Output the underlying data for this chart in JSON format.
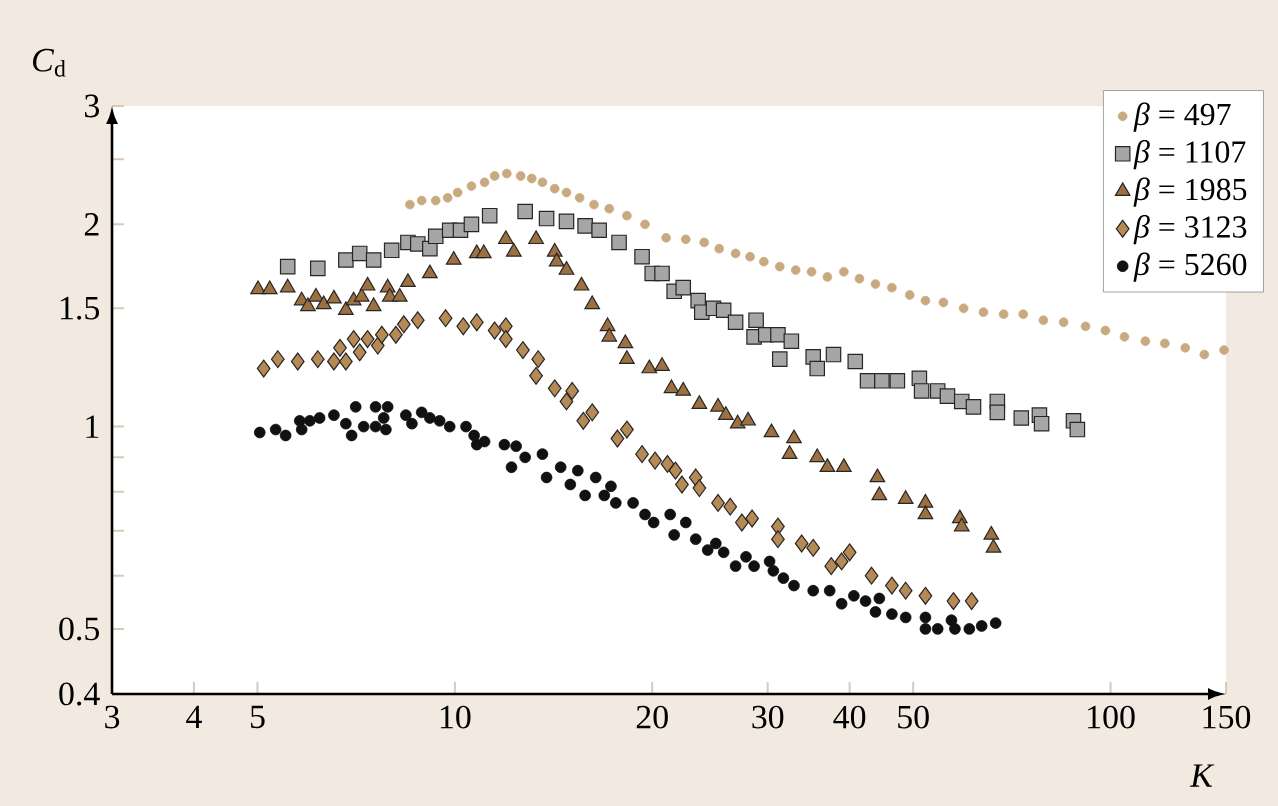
{
  "chart_data": {
    "type": "scatter",
    "xlabel": "*K*",
    "ylabel": "*C*$_{d}$",
    "log": "xy",
    "legend": "top right",
    "xlim": [
      3,
      150
    ],
    "ylim": [
      0.4,
      3
    ],
    "xticks": [
      3,
      4,
      5,
      10,
      20,
      30,
      40,
      50,
      100,
      150
    ],
    "yticks": [
      0.4,
      0.5,
      {
        "value": 0.6,
        "label": null
      },
      {
        "value": 0.7,
        "label": null
      },
      {
        "value": 0.8,
        "label": null
      },
      {
        "value": 0.9,
        "label": null
      },
      1,
      1.5,
      2,
      {
        "value": 2.5,
        "label": null
      },
      3
    ],
    "series": [
      {
        "name": "*β* = 497",
        "color": "#c9a97f",
        "marker": "circle",
        "x": [
          8.54,
          8.9,
          9.35,
          9.75,
          10.1,
          10.6,
          11.1,
          11.5,
          12.0,
          12.6,
          13.1,
          13.6,
          14.2,
          14.8,
          15.5,
          16.3,
          17.2,
          18.3,
          19.5,
          21.0,
          22.5,
          24.0,
          25.3,
          26.8,
          28.2,
          29.6,
          31.3,
          33.1,
          35.0,
          37.0,
          39.2,
          41.4,
          43.8,
          46.4,
          49.4,
          52.2,
          55.6,
          59.7,
          64.0,
          68.7,
          73.6,
          79.0,
          84.8,
          91.6,
          98.2,
          105,
          113,
          121,
          130,
          139,
          149
        ],
        "values": [
          2.14,
          2.17,
          2.17,
          2.19,
          2.23,
          2.28,
          2.31,
          2.36,
          2.38,
          2.36,
          2.34,
          2.31,
          2.26,
          2.23,
          2.19,
          2.14,
          2.11,
          2.06,
          2.0,
          1.91,
          1.9,
          1.88,
          1.84,
          1.81,
          1.79,
          1.76,
          1.73,
          1.71,
          1.7,
          1.67,
          1.7,
          1.66,
          1.63,
          1.61,
          1.57,
          1.54,
          1.53,
          1.5,
          1.48,
          1.47,
          1.47,
          1.44,
          1.43,
          1.41,
          1.39,
          1.36,
          1.34,
          1.33,
          1.31,
          1.28,
          1.3
        ]
      },
      {
        "name": "*β* = 1107",
        "color": "#a6a6a6",
        "marker": "square",
        "x": [
          5.56,
          6.18,
          6.82,
          7.16,
          7.52,
          8.01,
          8.48,
          8.78,
          9.16,
          9.35,
          9.82,
          10.2,
          10.6,
          11.3,
          12.8,
          13.8,
          14.8,
          15.8,
          16.6,
          17.8,
          19.3,
          20.0,
          20.7,
          21.6,
          22.3,
          23.5,
          23.8,
          24.8,
          25.7,
          26.8,
          28.6,
          28.8,
          29.8,
          31.1,
          31.3,
          32.6,
          35.2,
          35.7,
          37.8,
          40.8,
          42.6,
          44.8,
          47.3,
          51.1,
          51.5,
          54.5,
          56.4,
          59.3,
          61.8,
          67.2,
          67.2,
          73.1,
          77.9,
          78.5,
          87.8,
          89.0
        ],
        "values": [
          1.73,
          1.72,
          1.77,
          1.81,
          1.77,
          1.83,
          1.88,
          1.87,
          1.84,
          1.92,
          1.96,
          1.96,
          2.0,
          2.06,
          2.09,
          2.04,
          2.02,
          1.99,
          1.96,
          1.88,
          1.79,
          1.69,
          1.69,
          1.59,
          1.61,
          1.54,
          1.48,
          1.5,
          1.49,
          1.43,
          1.36,
          1.44,
          1.37,
          1.37,
          1.26,
          1.34,
          1.27,
          1.22,
          1.28,
          1.25,
          1.17,
          1.17,
          1.17,
          1.18,
          1.13,
          1.13,
          1.11,
          1.09,
          1.07,
          1.09,
          1.05,
          1.03,
          1.04,
          1.01,
          1.02,
          0.99
        ]
      },
      {
        "name": "*β* = 1985",
        "color": "#9c7040",
        "marker": "triangle",
        "x": [
          5.01,
          5.22,
          5.56,
          5.84,
          5.97,
          6.14,
          6.31,
          6.54,
          6.82,
          7.01,
          7.21,
          7.36,
          7.52,
          7.9,
          7.96,
          8.24,
          8.48,
          9.16,
          9.96,
          10.8,
          11.07,
          11.96,
          12.3,
          13.3,
          14.2,
          14.3,
          14.8,
          15.6,
          16.2,
          17.1,
          17.2,
          18.2,
          18.3,
          19.8,
          20.7,
          21.4,
          22.3,
          23.6,
          25.2,
          25.9,
          27.0,
          28.0,
          30.4,
          32.9,
          32.4,
          35.7,
          37.0,
          39.2,
          44.1,
          44.4,
          48.7,
          52.2,
          52.2,
          58.9,
          59.3,
          65.8,
          66.3
        ],
        "values": [
          1.6,
          1.6,
          1.61,
          1.54,
          1.51,
          1.56,
          1.52,
          1.55,
          1.49,
          1.54,
          1.56,
          1.62,
          1.51,
          1.61,
          1.56,
          1.56,
          1.64,
          1.69,
          1.77,
          1.81,
          1.81,
          1.9,
          1.82,
          1.9,
          1.82,
          1.76,
          1.71,
          1.62,
          1.52,
          1.41,
          1.36,
          1.33,
          1.26,
          1.22,
          1.23,
          1.14,
          1.13,
          1.08,
          1.07,
          1.04,
          1.01,
          1.02,
          0.98,
          0.96,
          0.91,
          0.9,
          0.87,
          0.87,
          0.84,
          0.79,
          0.78,
          0.77,
          0.74,
          0.73,
          0.71,
          0.69,
          0.66
        ]
      },
      {
        "name": "*β* = 3123",
        "color": "#b58a55",
        "marker": "diamond",
        "x": [
          5.11,
          5.37,
          5.76,
          6.18,
          6.54,
          6.68,
          6.82,
          7.01,
          7.16,
          7.36,
          7.63,
          7.74,
          8.13,
          8.36,
          8.78,
          9.68,
          10.3,
          10.8,
          11.5,
          11.96,
          11.96,
          12.7,
          13.4,
          13.3,
          14.2,
          15.1,
          14.8,
          16.2,
          15.7,
          17.7,
          18.3,
          19.3,
          20.2,
          21.1,
          21.7,
          22.2,
          23.3,
          23.6,
          25.2,
          26.3,
          27.4,
          28.4,
          31.1,
          31.1,
          33.8,
          35.2,
          37.5,
          38.9,
          40.0,
          43.2,
          46.4,
          48.7,
          52.2,
          57.6,
          61.4
        ],
        "values": [
          1.22,
          1.26,
          1.25,
          1.26,
          1.25,
          1.31,
          1.25,
          1.35,
          1.29,
          1.35,
          1.32,
          1.37,
          1.37,
          1.42,
          1.44,
          1.45,
          1.41,
          1.43,
          1.39,
          1.41,
          1.35,
          1.3,
          1.26,
          1.19,
          1.14,
          1.13,
          1.09,
          1.05,
          1.02,
          0.96,
          0.99,
          0.91,
          0.89,
          0.88,
          0.86,
          0.82,
          0.84,
          0.81,
          0.77,
          0.76,
          0.72,
          0.73,
          0.71,
          0.68,
          0.67,
          0.66,
          0.62,
          0.63,
          0.65,
          0.6,
          0.58,
          0.57,
          0.56,
          0.55,
          0.55
        ]
      },
      {
        "name": "*β* = 5260",
        "color": "#111111",
        "marker": "circle",
        "x": [
          5.04,
          5.33,
          5.52,
          5.8,
          5.84,
          6.01,
          6.22,
          6.54,
          6.82,
          6.96,
          7.06,
          7.26,
          7.57,
          7.57,
          7.79,
          7.9,
          7.85,
          8.42,
          8.6,
          8.9,
          9.16,
          9.48,
          9.82,
          10.4,
          10.8,
          10.7,
          11.1,
          11.9,
          12.4,
          12.2,
          12.8,
          13.6,
          13.8,
          14.5,
          15.0,
          15.4,
          15.8,
          16.4,
          16.9,
          17.3,
          17.6,
          18.7,
          19.5,
          20.1,
          21.3,
          21.6,
          22.5,
          23.3,
          24.3,
          25.0,
          25.7,
          26.8,
          27.8,
          28.6,
          30.2,
          30.6,
          31.7,
          32.9,
          35.2,
          37.3,
          38.9,
          40.6,
          42.3,
          44.4,
          43.8,
          46.4,
          48.7,
          52.2,
          52.2,
          54.5,
          57.2,
          57.9,
          60.9,
          63.6,
          66.8
        ],
        "values": [
          0.98,
          0.99,
          0.97,
          1.02,
          0.99,
          1.02,
          1.03,
          1.04,
          1.01,
          0.97,
          1.07,
          1.0,
          1.07,
          1.0,
          1.03,
          1.07,
          0.99,
          1.04,
          1.01,
          1.05,
          1.03,
          1.02,
          1.0,
          1.0,
          0.94,
          0.97,
          0.95,
          0.94,
          0.935,
          0.87,
          0.9,
          0.91,
          0.84,
          0.87,
          0.82,
          0.86,
          0.79,
          0.84,
          0.79,
          0.815,
          0.77,
          0.77,
          0.74,
          0.72,
          0.74,
          0.69,
          0.72,
          0.68,
          0.655,
          0.67,
          0.65,
          0.62,
          0.64,
          0.62,
          0.63,
          0.61,
          0.595,
          0.58,
          0.57,
          0.57,
          0.545,
          0.56,
          0.55,
          0.555,
          0.53,
          0.526,
          0.52,
          0.52,
          0.5,
          0.5,
          0.515,
          0.5,
          0.5,
          0.505,
          0.51
        ]
      }
    ]
  }
}
